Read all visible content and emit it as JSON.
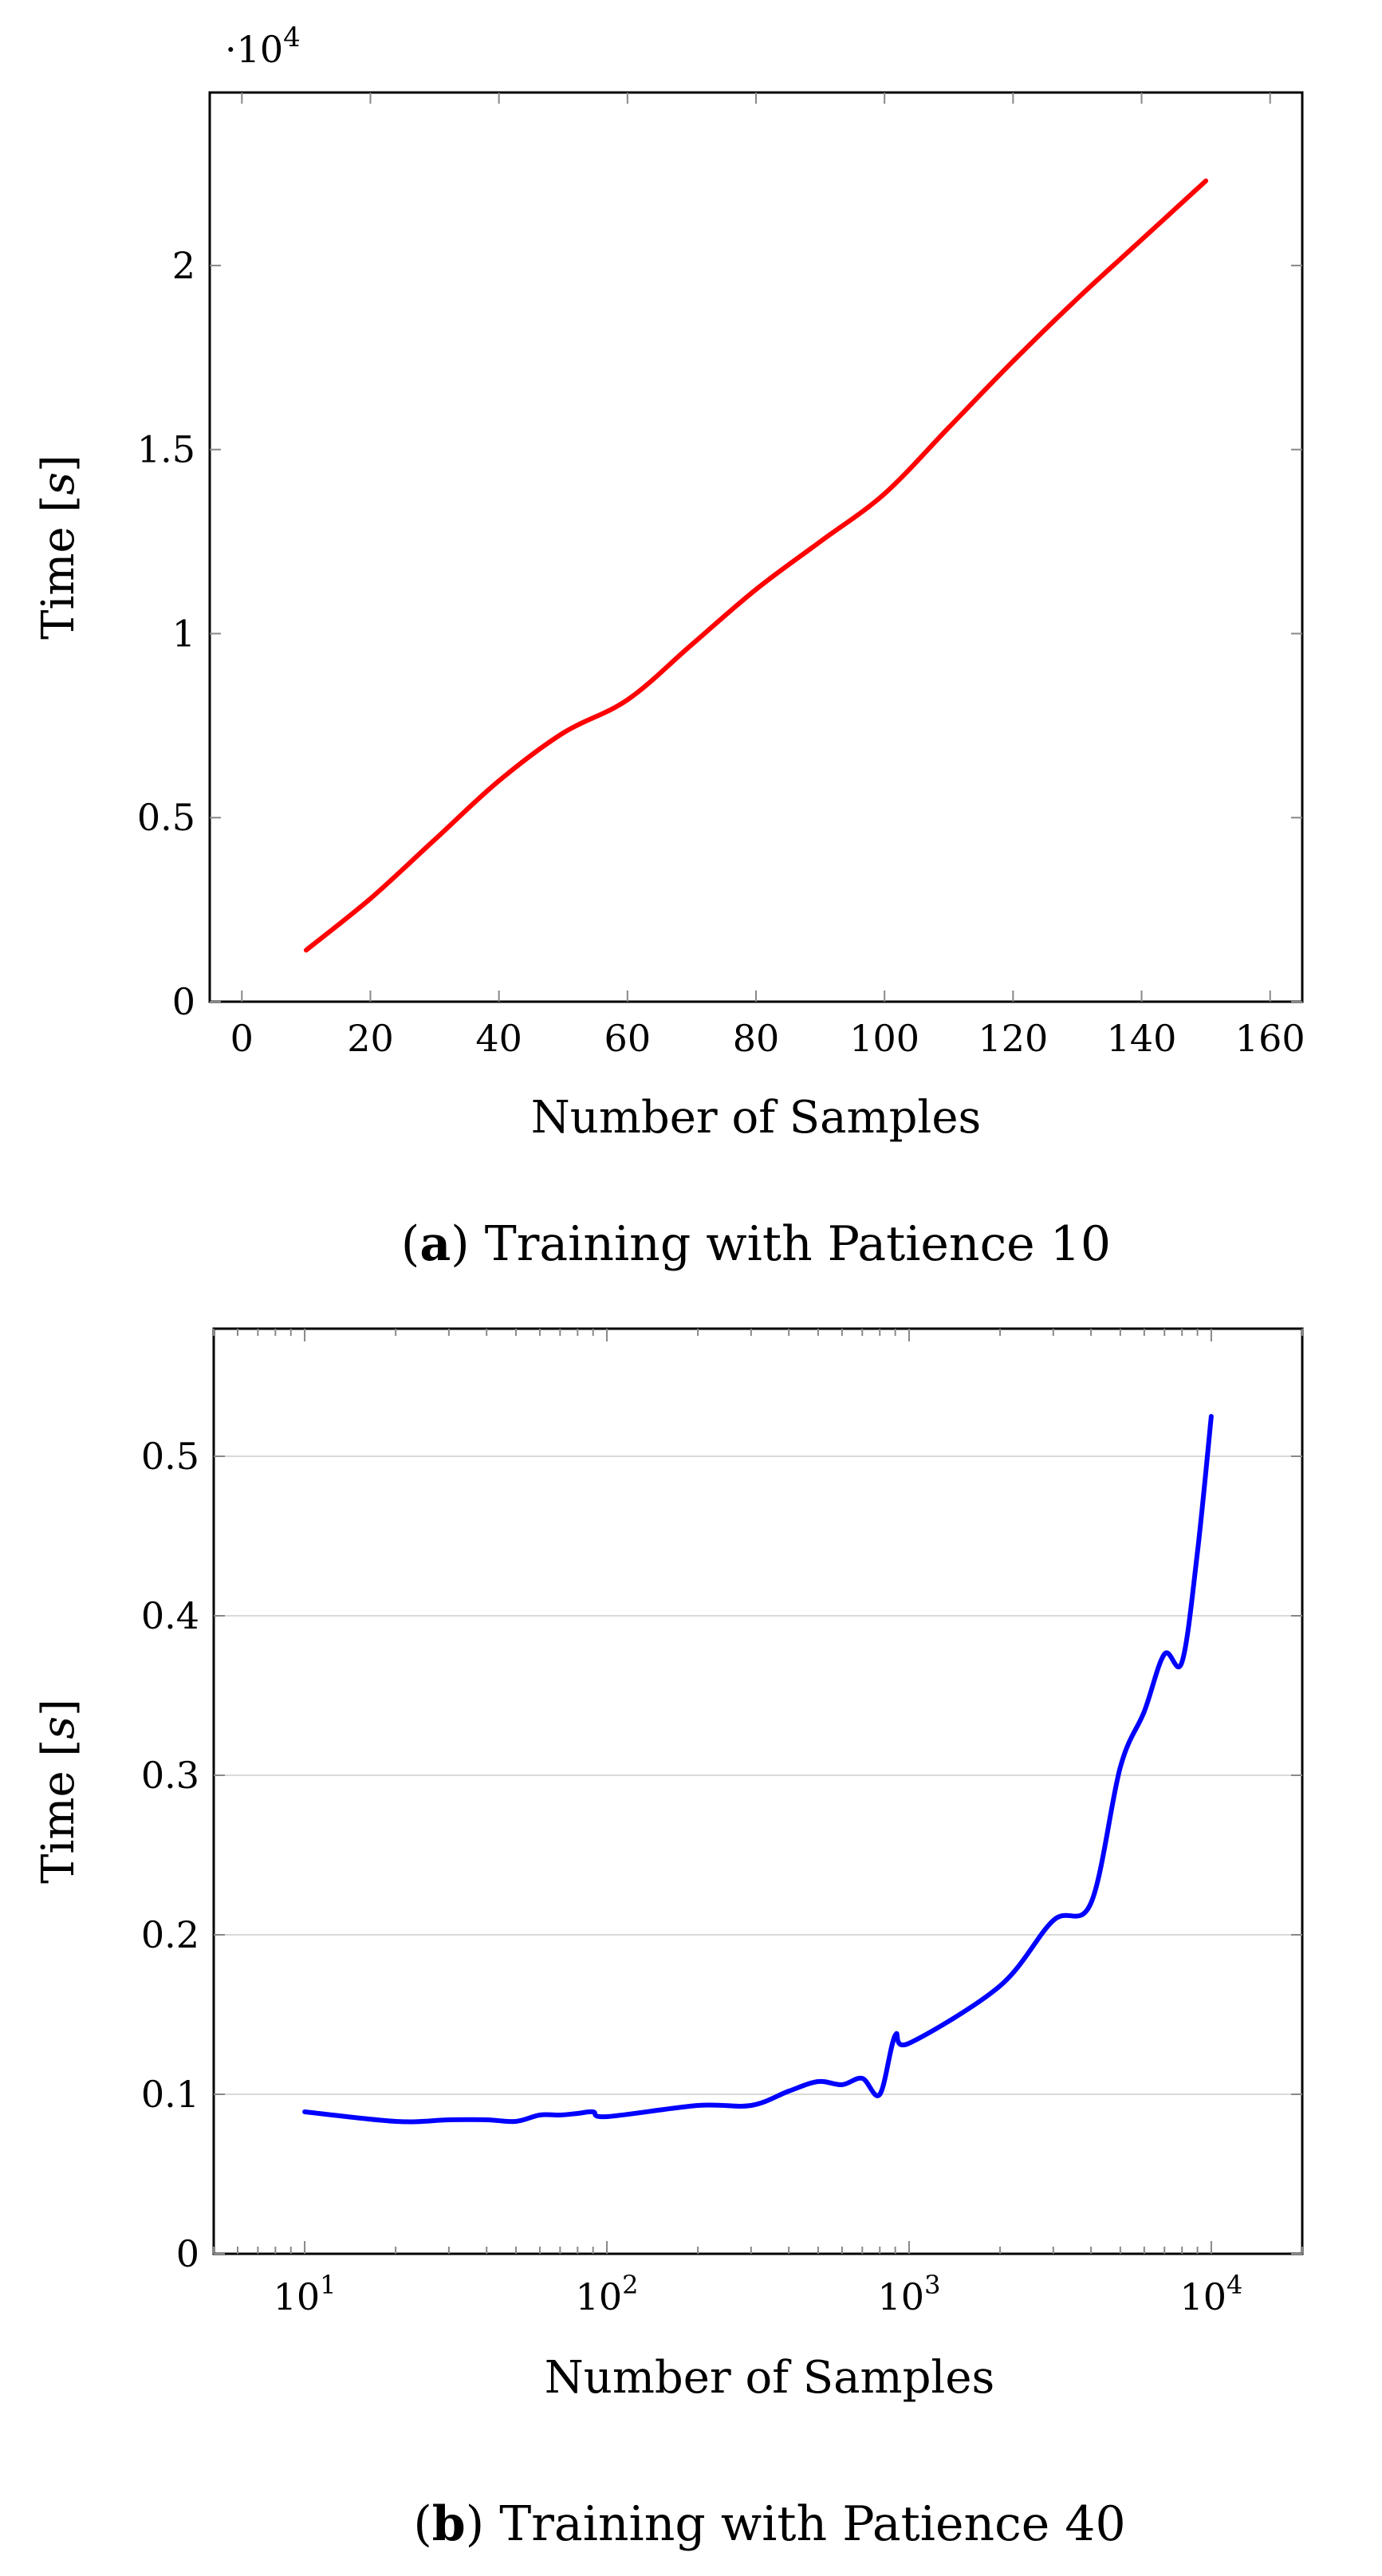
{
  "chart_data": [
    {
      "type": "line",
      "xlabel": "Number of Samples",
      "ylabel_text": "Time ",
      "ylabel_unit": "s",
      "ylim": [
        0,
        24700
      ],
      "xlim": [
        -5,
        165
      ],
      "y_multiplier_label": "·10",
      "y_multiplier_exp": "4",
      "x_ticks": [
        0,
        20,
        40,
        60,
        80,
        100,
        120,
        140,
        160
      ],
      "x_tick_labels": [
        "0",
        "20",
        "40",
        "60",
        "80",
        "100",
        "120",
        "140",
        "160"
      ],
      "y_ticks": [
        0,
        5000,
        10000,
        15000,
        20000
      ],
      "y_tick_labels": [
        "0",
        "0.5",
        "1",
        "1.5",
        "2"
      ],
      "series": [
        {
          "color": "#ff0000",
          "x": [
            10,
            20,
            30,
            40,
            50,
            60,
            70,
            80,
            90,
            100,
            110,
            120,
            130,
            140,
            150
          ],
          "values": [
            1400,
            2800,
            4400,
            6000,
            7300,
            8200,
            9700,
            11200,
            12500,
            13800,
            15600,
            17400,
            19100,
            20700,
            22300
          ]
        }
      ],
      "caption_letter": "a",
      "caption_text": "Training with Patience 10"
    },
    {
      "type": "line",
      "xscale": "log",
      "xlabel": "Number of Samples",
      "ylabel_text": "Time ",
      "ylabel_unit": "s",
      "ylim": [
        0,
        0.58
      ],
      "xlim": [
        5,
        20000
      ],
      "x_ticks": [
        10,
        100,
        1000,
        10000
      ],
      "x_tick_base": "10",
      "x_tick_exps": [
        "1",
        "2",
        "3",
        "4"
      ],
      "y_ticks": [
        0,
        0.1,
        0.2,
        0.3,
        0.4,
        0.5
      ],
      "y_tick_labels": [
        "0",
        "0.1",
        "0.2",
        "0.3",
        "0.4",
        "0.5"
      ],
      "series": [
        {
          "color": "#0000ff",
          "x": [
            10,
            20,
            30,
            40,
            50,
            60,
            70,
            80,
            90,
            100,
            200,
            300,
            400,
            500,
            600,
            700,
            800,
            900,
            1000,
            2000,
            3000,
            4000,
            5000,
            6000,
            7000,
            8000,
            9000,
            10000
          ],
          "values": [
            0.089,
            0.083,
            0.084,
            0.084,
            0.083,
            0.087,
            0.087,
            0.088,
            0.089,
            0.086,
            0.093,
            0.093,
            0.102,
            0.108,
            0.106,
            0.11,
            0.1,
            0.137,
            0.132,
            0.168,
            0.209,
            0.22,
            0.305,
            0.34,
            0.376,
            0.371,
            0.44,
            0.525
          ]
        }
      ],
      "caption_letter": "b",
      "caption_text": "Training with Patience 40"
    }
  ]
}
